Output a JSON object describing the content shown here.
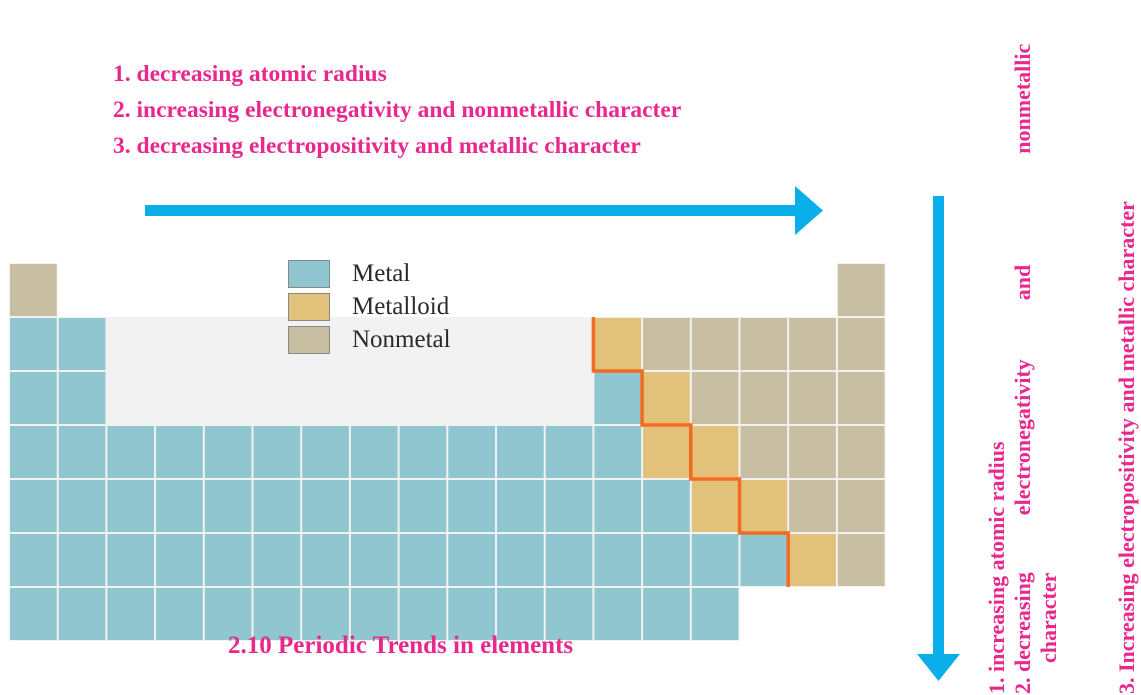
{
  "horizontal_trends": [
    "1. decreasing atomic radius",
    "2. increasing electronegativity and nonmetallic character",
    "3. decreasing electropositivity and metallic character"
  ],
  "vertical_trends": {
    "item1": "1. increasing atomic radius",
    "item2_line1_a": "2. decreasing",
    "item2_line1_b": "electronegativity",
    "item2_line1_c": "and",
    "item2_line1_d": "nonmetallic",
    "item2_line2": "character",
    "item3": "3. Increasing electropositivity and metallic character"
  },
  "legend": [
    {
      "label": "Metal",
      "color": "#8fc6d0"
    },
    {
      "label": "Metalloid",
      "color": "#e2c27a"
    },
    {
      "label": "Nonmetal",
      "color": "#c8bea2"
    }
  ],
  "caption": "2.10 Periodic Trends in elements",
  "colors": {
    "accent": "#e8288c",
    "arrow": "#0aaee8",
    "boundary": "#f26b21",
    "metal": "#8fc6d0",
    "metalloid": "#e2c27a",
    "nonmetal": "#c8bea2",
    "table_background": "#f2f2f2",
    "grid_line": "#ffffff"
  },
  "periodic_table": {
    "rows": [
      {
        "period": 1,
        "cells": [
          {
            "group": 1,
            "type": "nonmetal"
          },
          {
            "group": 18,
            "type": "nonmetal"
          }
        ]
      },
      {
        "period": 2,
        "cells": [
          {
            "group": 1,
            "type": "metal"
          },
          {
            "group": 2,
            "type": "metal"
          },
          {
            "group": 13,
            "type": "metalloid"
          },
          {
            "group": 14,
            "type": "nonmetal"
          },
          {
            "group": 15,
            "type": "nonmetal"
          },
          {
            "group": 16,
            "type": "nonmetal"
          },
          {
            "group": 17,
            "type": "nonmetal"
          },
          {
            "group": 18,
            "type": "nonmetal"
          }
        ]
      },
      {
        "period": 3,
        "cells": [
          {
            "group": 1,
            "type": "metal"
          },
          {
            "group": 2,
            "type": "metal"
          },
          {
            "group": 13,
            "type": "metal"
          },
          {
            "group": 14,
            "type": "metalloid"
          },
          {
            "group": 15,
            "type": "nonmetal"
          },
          {
            "group": 16,
            "type": "nonmetal"
          },
          {
            "group": 17,
            "type": "nonmetal"
          },
          {
            "group": 18,
            "type": "nonmetal"
          }
        ]
      },
      {
        "period": 4,
        "cells": [
          {
            "group": 1,
            "type": "metal"
          },
          {
            "group": 2,
            "type": "metal"
          },
          {
            "group": 3,
            "type": "metal"
          },
          {
            "group": 4,
            "type": "metal"
          },
          {
            "group": 5,
            "type": "metal"
          },
          {
            "group": 6,
            "type": "metal"
          },
          {
            "group": 7,
            "type": "metal"
          },
          {
            "group": 8,
            "type": "metal"
          },
          {
            "group": 9,
            "type": "metal"
          },
          {
            "group": 10,
            "type": "metal"
          },
          {
            "group": 11,
            "type": "metal"
          },
          {
            "group": 12,
            "type": "metal"
          },
          {
            "group": 13,
            "type": "metal"
          },
          {
            "group": 14,
            "type": "metalloid"
          },
          {
            "group": 15,
            "type": "metalloid"
          },
          {
            "group": 16,
            "type": "nonmetal"
          },
          {
            "group": 17,
            "type": "nonmetal"
          },
          {
            "group": 18,
            "type": "nonmetal"
          }
        ]
      },
      {
        "period": 5,
        "cells": [
          {
            "group": 1,
            "type": "metal"
          },
          {
            "group": 2,
            "type": "metal"
          },
          {
            "group": 3,
            "type": "metal"
          },
          {
            "group": 4,
            "type": "metal"
          },
          {
            "group": 5,
            "type": "metal"
          },
          {
            "group": 6,
            "type": "metal"
          },
          {
            "group": 7,
            "type": "metal"
          },
          {
            "group": 8,
            "type": "metal"
          },
          {
            "group": 9,
            "type": "metal"
          },
          {
            "group": 10,
            "type": "metal"
          },
          {
            "group": 11,
            "type": "metal"
          },
          {
            "group": 12,
            "type": "metal"
          },
          {
            "group": 13,
            "type": "metal"
          },
          {
            "group": 14,
            "type": "metal"
          },
          {
            "group": 15,
            "type": "metalloid"
          },
          {
            "group": 16,
            "type": "metalloid"
          },
          {
            "group": 17,
            "type": "nonmetal"
          },
          {
            "group": 18,
            "type": "nonmetal"
          }
        ]
      },
      {
        "period": 6,
        "cells": [
          {
            "group": 1,
            "type": "metal"
          },
          {
            "group": 2,
            "type": "metal"
          },
          {
            "group": 3,
            "type": "metal"
          },
          {
            "group": 4,
            "type": "metal"
          },
          {
            "group": 5,
            "type": "metal"
          },
          {
            "group": 6,
            "type": "metal"
          },
          {
            "group": 7,
            "type": "metal"
          },
          {
            "group": 8,
            "type": "metal"
          },
          {
            "group": 9,
            "type": "metal"
          },
          {
            "group": 10,
            "type": "metal"
          },
          {
            "group": 11,
            "type": "metal"
          },
          {
            "group": 12,
            "type": "metal"
          },
          {
            "group": 13,
            "type": "metal"
          },
          {
            "group": 14,
            "type": "metal"
          },
          {
            "group": 15,
            "type": "metal"
          },
          {
            "group": 16,
            "type": "metal"
          },
          {
            "group": 17,
            "type": "metalloid"
          },
          {
            "group": 18,
            "type": "nonmetal"
          }
        ]
      },
      {
        "period": 7,
        "cells": [
          {
            "group": 1,
            "type": "metal"
          },
          {
            "group": 2,
            "type": "metal"
          },
          {
            "group": 3,
            "type": "metal"
          },
          {
            "group": 4,
            "type": "metal"
          },
          {
            "group": 5,
            "type": "metal"
          },
          {
            "group": 6,
            "type": "metal"
          },
          {
            "group": 7,
            "type": "metal"
          },
          {
            "group": 8,
            "type": "metal"
          },
          {
            "group": 9,
            "type": "metal"
          },
          {
            "group": 10,
            "type": "metal"
          },
          {
            "group": 11,
            "type": "metal"
          },
          {
            "group": 12,
            "type": "metal"
          },
          {
            "group": 13,
            "type": "metal"
          },
          {
            "group": 14,
            "type": "metal"
          },
          {
            "group": 15,
            "type": "metal"
          }
        ]
      }
    ]
  }
}
